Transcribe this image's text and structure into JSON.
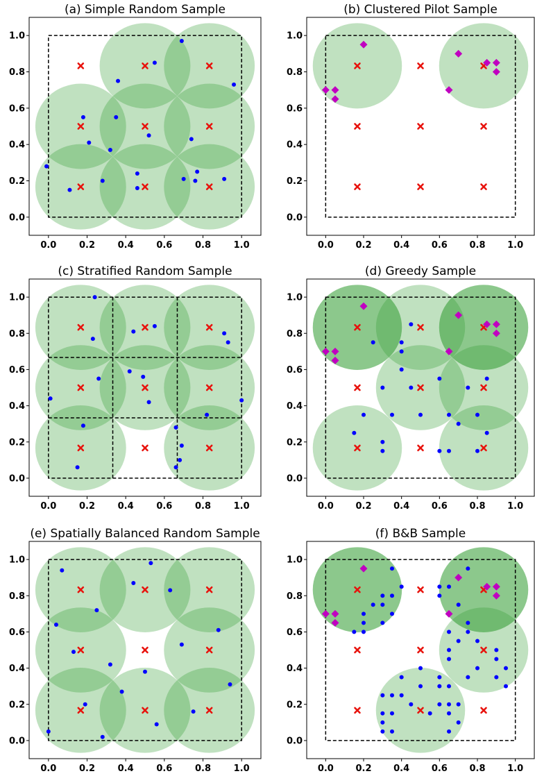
{
  "chart_data": [
    {
      "type": "scatter",
      "title": "(a) Simple Random Sample",
      "xlim": [
        -0.1,
        1.1
      ],
      "ylim": [
        -0.1,
        1.1
      ],
      "xticks": [
        "0.0",
        "0.2",
        "0.4",
        "0.6",
        "0.8",
        "1.0"
      ],
      "yticks": [
        "0.0",
        "0.2",
        "0.4",
        "0.6",
        "0.8",
        "1.0"
      ],
      "box": [
        0,
        1,
        0,
        1
      ],
      "strata": [],
      "centers": [
        [
          0.167,
          0.833
        ],
        [
          0.5,
          0.833
        ],
        [
          0.833,
          0.833
        ],
        [
          0.167,
          0.5
        ],
        [
          0.5,
          0.5
        ],
        [
          0.833,
          0.5
        ],
        [
          0.167,
          0.167
        ],
        [
          0.5,
          0.167
        ],
        [
          0.833,
          0.167
        ]
      ],
      "circle_radius": 0.235,
      "circles_light": [
        [
          0.5,
          0.833
        ],
        [
          0.833,
          0.833
        ],
        [
          0.167,
          0.5
        ],
        [
          0.5,
          0.5
        ],
        [
          0.833,
          0.5
        ],
        [
          0.167,
          0.167
        ],
        [
          0.5,
          0.167
        ],
        [
          0.833,
          0.167
        ]
      ],
      "circles_dark": [],
      "pilot_points": [],
      "sample_points": [
        [
          0.69,
          0.97
        ],
        [
          0.55,
          0.85
        ],
        [
          0.36,
          0.75
        ],
        [
          0.96,
          0.73
        ],
        [
          0.18,
          0.55
        ],
        [
          0.35,
          0.55
        ],
        [
          0.52,
          0.45
        ],
        [
          0.74,
          0.43
        ],
        [
          0.21,
          0.41
        ],
        [
          0.32,
          0.37
        ],
        [
          -0.01,
          0.28
        ],
        [
          0.77,
          0.25
        ],
        [
          0.46,
          0.24
        ],
        [
          0.28,
          0.2
        ],
        [
          0.7,
          0.21
        ],
        [
          0.76,
          0.2
        ],
        [
          0.91,
          0.21
        ],
        [
          0.11,
          0.15
        ],
        [
          0.46,
          0.16
        ]
      ]
    },
    {
      "type": "scatter",
      "title": "(b) Clustered Pilot Sample",
      "xlim": [
        -0.1,
        1.1
      ],
      "ylim": [
        -0.1,
        1.1
      ],
      "xticks": [
        "0.0",
        "0.2",
        "0.4",
        "0.6",
        "0.8",
        "1.0"
      ],
      "yticks": [
        "0.0",
        "0.2",
        "0.4",
        "0.6",
        "0.8",
        "1.0"
      ],
      "box": [
        0,
        1,
        0,
        1
      ],
      "strata": [],
      "centers": [
        [
          0.167,
          0.833
        ],
        [
          0.5,
          0.833
        ],
        [
          0.833,
          0.833
        ],
        [
          0.167,
          0.5
        ],
        [
          0.5,
          0.5
        ],
        [
          0.833,
          0.5
        ],
        [
          0.167,
          0.167
        ],
        [
          0.5,
          0.167
        ],
        [
          0.833,
          0.167
        ]
      ],
      "circle_radius": 0.235,
      "circles_light": [
        [
          0.167,
          0.833
        ],
        [
          0.833,
          0.833
        ]
      ],
      "circles_dark": [],
      "pilot_points": [
        [
          0.2,
          0.95
        ],
        [
          0.0,
          0.7
        ],
        [
          0.05,
          0.7
        ],
        [
          0.05,
          0.65
        ],
        [
          0.7,
          0.9
        ],
        [
          0.85,
          0.85
        ],
        [
          0.9,
          0.85
        ],
        [
          0.9,
          0.8
        ],
        [
          0.65,
          0.7
        ]
      ],
      "sample_points": []
    },
    {
      "type": "scatter",
      "title": "(c) Stratified Random Sample",
      "xlim": [
        -0.1,
        1.1
      ],
      "ylim": [
        -0.1,
        1.1
      ],
      "xticks": [
        "0.0",
        "0.2",
        "0.4",
        "0.6",
        "0.8",
        "1.0"
      ],
      "yticks": [
        "0.0",
        "0.2",
        "0.4",
        "0.6",
        "0.8",
        "1.0"
      ],
      "box": [
        0,
        1,
        0,
        1
      ],
      "strata": [
        0.333,
        0.667
      ],
      "centers": [
        [
          0.167,
          0.833
        ],
        [
          0.5,
          0.833
        ],
        [
          0.833,
          0.833
        ],
        [
          0.167,
          0.5
        ],
        [
          0.5,
          0.5
        ],
        [
          0.833,
          0.5
        ],
        [
          0.167,
          0.167
        ],
        [
          0.5,
          0.167
        ],
        [
          0.833,
          0.167
        ]
      ],
      "circle_radius": 0.235,
      "circles_light": [
        [
          0.167,
          0.833
        ],
        [
          0.5,
          0.833
        ],
        [
          0.833,
          0.833
        ],
        [
          0.167,
          0.5
        ],
        [
          0.5,
          0.5
        ],
        [
          0.833,
          0.5
        ],
        [
          0.167,
          0.167
        ],
        [
          0.833,
          0.167
        ]
      ],
      "circles_dark": [],
      "pilot_points": [],
      "sample_points": [
        [
          0.24,
          1.0
        ],
        [
          0.23,
          0.77
        ],
        [
          0.44,
          0.81
        ],
        [
          0.55,
          0.84
        ],
        [
          0.91,
          0.8
        ],
        [
          0.93,
          0.75
        ],
        [
          0.26,
          0.55
        ],
        [
          0.42,
          0.59
        ],
        [
          0.49,
          0.56
        ],
        [
          0.52,
          0.42
        ],
        [
          0.01,
          0.44
        ],
        [
          1.0,
          0.43
        ],
        [
          0.82,
          0.35
        ],
        [
          0.18,
          0.29
        ],
        [
          0.66,
          0.28
        ],
        [
          0.69,
          0.18
        ],
        [
          0.68,
          0.1
        ],
        [
          0.66,
          0.06
        ],
        [
          0.15,
          0.06
        ]
      ]
    },
    {
      "type": "scatter",
      "title": "(d) Greedy Sample",
      "xlim": [
        -0.1,
        1.1
      ],
      "ylim": [
        -0.1,
        1.1
      ],
      "xticks": [
        "0.0",
        "0.2",
        "0.4",
        "0.6",
        "0.8",
        "1.0"
      ],
      "yticks": [
        "0.0",
        "0.2",
        "0.4",
        "0.6",
        "0.8",
        "1.0"
      ],
      "box": [
        0,
        1,
        0,
        1
      ],
      "strata": [],
      "centers": [
        [
          0.167,
          0.833
        ],
        [
          0.5,
          0.833
        ],
        [
          0.833,
          0.833
        ],
        [
          0.167,
          0.5
        ],
        [
          0.5,
          0.5
        ],
        [
          0.833,
          0.5
        ],
        [
          0.167,
          0.167
        ],
        [
          0.5,
          0.167
        ],
        [
          0.833,
          0.167
        ]
      ],
      "circle_radius": 0.235,
      "circles_light": [
        [
          0.5,
          0.833
        ],
        [
          0.5,
          0.5
        ],
        [
          0.833,
          0.5
        ],
        [
          0.167,
          0.167
        ],
        [
          0.833,
          0.167
        ]
      ],
      "circles_dark": [
        [
          0.167,
          0.833
        ],
        [
          0.833,
          0.833
        ]
      ],
      "pilot_points": [
        [
          0.2,
          0.95
        ],
        [
          0.0,
          0.7
        ],
        [
          0.05,
          0.7
        ],
        [
          0.05,
          0.65
        ],
        [
          0.7,
          0.9
        ],
        [
          0.85,
          0.85
        ],
        [
          0.9,
          0.85
        ],
        [
          0.9,
          0.8
        ],
        [
          0.65,
          0.7
        ]
      ],
      "sample_points": [
        [
          0.45,
          0.85
        ],
        [
          0.25,
          0.75
        ],
        [
          0.4,
          0.75
        ],
        [
          0.4,
          0.7
        ],
        [
          0.4,
          0.6
        ],
        [
          0.3,
          0.5
        ],
        [
          0.45,
          0.5
        ],
        [
          0.6,
          0.55
        ],
        [
          0.75,
          0.5
        ],
        [
          0.85,
          0.55
        ],
        [
          0.2,
          0.35
        ],
        [
          0.35,
          0.35
        ],
        [
          0.5,
          0.35
        ],
        [
          0.65,
          0.35
        ],
        [
          0.7,
          0.3
        ],
        [
          0.8,
          0.35
        ],
        [
          0.85,
          0.25
        ],
        [
          0.15,
          0.25
        ],
        [
          0.3,
          0.2
        ],
        [
          0.3,
          0.15
        ],
        [
          0.6,
          0.15
        ],
        [
          0.65,
          0.15
        ],
        [
          0.8,
          0.15
        ]
      ]
    },
    {
      "type": "scatter",
      "title": "(e) Spatially Balanced Random Sample",
      "xlim": [
        -0.1,
        1.1
      ],
      "ylim": [
        -0.1,
        1.1
      ],
      "xticks": [
        "0.0",
        "0.2",
        "0.4",
        "0.6",
        "0.8",
        "1.0"
      ],
      "yticks": [
        "0.0",
        "0.2",
        "0.4",
        "0.6",
        "0.8",
        "1.0"
      ],
      "box": [
        0,
        1,
        0,
        1
      ],
      "strata": [],
      "centers": [
        [
          0.167,
          0.833
        ],
        [
          0.5,
          0.833
        ],
        [
          0.833,
          0.833
        ],
        [
          0.167,
          0.5
        ],
        [
          0.5,
          0.5
        ],
        [
          0.833,
          0.5
        ],
        [
          0.167,
          0.167
        ],
        [
          0.5,
          0.167
        ],
        [
          0.833,
          0.167
        ]
      ],
      "circle_radius": 0.235,
      "circles_light": [
        [
          0.167,
          0.833
        ],
        [
          0.5,
          0.833
        ],
        [
          0.833,
          0.833
        ],
        [
          0.167,
          0.5
        ],
        [
          0.833,
          0.5
        ],
        [
          0.167,
          0.167
        ],
        [
          0.5,
          0.167
        ],
        [
          0.833,
          0.167
        ]
      ],
      "circles_dark": [],
      "pilot_points": [],
      "sample_points": [
        [
          0.07,
          0.94
        ],
        [
          0.53,
          0.98
        ],
        [
          0.44,
          0.87
        ],
        [
          0.63,
          0.83
        ],
        [
          0.25,
          0.72
        ],
        [
          0.04,
          0.64
        ],
        [
          0.88,
          0.61
        ],
        [
          0.69,
          0.53
        ],
        [
          0.13,
          0.49
        ],
        [
          0.32,
          0.42
        ],
        [
          0.5,
          0.38
        ],
        [
          0.94,
          0.31
        ],
        [
          0.38,
          0.27
        ],
        [
          0.19,
          0.2
        ],
        [
          0.75,
          0.16
        ],
        [
          0.56,
          0.09
        ],
        [
          0.0,
          0.05
        ],
        [
          0.28,
          0.02
        ]
      ]
    },
    {
      "type": "scatter",
      "title": "(f) B&B Sample",
      "xlim": [
        -0.1,
        1.1
      ],
      "ylim": [
        -0.1,
        1.1
      ],
      "xticks": [
        "0.0",
        "0.2",
        "0.4",
        "0.6",
        "0.8",
        "1.0"
      ],
      "yticks": [
        "0.0",
        "0.2",
        "0.4",
        "0.6",
        "0.8",
        "1.0"
      ],
      "box": [
        0,
        1,
        0,
        1
      ],
      "strata": [],
      "centers": [
        [
          0.167,
          0.833
        ],
        [
          0.5,
          0.833
        ],
        [
          0.833,
          0.833
        ],
        [
          0.167,
          0.5
        ],
        [
          0.5,
          0.5
        ],
        [
          0.833,
          0.5
        ],
        [
          0.167,
          0.167
        ],
        [
          0.5,
          0.167
        ],
        [
          0.833,
          0.167
        ]
      ],
      "circle_radius": 0.235,
      "circles_light": [
        [
          0.833,
          0.5
        ],
        [
          0.5,
          0.167
        ]
      ],
      "circles_dark": [
        [
          0.167,
          0.833
        ],
        [
          0.833,
          0.833
        ]
      ],
      "pilot_points": [
        [
          0.2,
          0.95
        ],
        [
          0.0,
          0.7
        ],
        [
          0.05,
          0.7
        ],
        [
          0.05,
          0.65
        ],
        [
          0.7,
          0.9
        ],
        [
          0.85,
          0.85
        ],
        [
          0.9,
          0.85
        ],
        [
          0.9,
          0.8
        ],
        [
          0.65,
          0.7
        ]
      ],
      "sample_points": [
        [
          0.35,
          0.95
        ],
        [
          0.4,
          0.85
        ],
        [
          0.3,
          0.8
        ],
        [
          0.35,
          0.8
        ],
        [
          0.25,
          0.75
        ],
        [
          0.3,
          0.75
        ],
        [
          0.2,
          0.7
        ],
        [
          0.35,
          0.7
        ],
        [
          0.2,
          0.65
        ],
        [
          0.3,
          0.65
        ],
        [
          0.15,
          0.6
        ],
        [
          0.2,
          0.6
        ],
        [
          0.75,
          0.95
        ],
        [
          0.6,
          0.85
        ],
        [
          0.65,
          0.85
        ],
        [
          0.6,
          0.8
        ],
        [
          0.7,
          0.75
        ],
        [
          0.75,
          0.65
        ],
        [
          0.65,
          0.6
        ],
        [
          0.75,
          0.6
        ],
        [
          0.7,
          0.55
        ],
        [
          0.8,
          0.55
        ],
        [
          0.65,
          0.5
        ],
        [
          0.9,
          0.5
        ],
        [
          0.65,
          0.45
        ],
        [
          0.9,
          0.45
        ],
        [
          0.75,
          0.35
        ],
        [
          0.9,
          0.35
        ],
        [
          0.95,
          0.4
        ],
        [
          0.95,
          0.3
        ],
        [
          0.8,
          0.4
        ],
        [
          0.5,
          0.4
        ],
        [
          0.4,
          0.35
        ],
        [
          0.5,
          0.3
        ],
        [
          0.6,
          0.35
        ],
        [
          0.6,
          0.3
        ],
        [
          0.65,
          0.3
        ],
        [
          0.3,
          0.25
        ],
        [
          0.35,
          0.25
        ],
        [
          0.4,
          0.25
        ],
        [
          0.45,
          0.2
        ],
        [
          0.6,
          0.2
        ],
        [
          0.65,
          0.2
        ],
        [
          0.7,
          0.2
        ],
        [
          0.3,
          0.15
        ],
        [
          0.35,
          0.15
        ],
        [
          0.55,
          0.15
        ],
        [
          0.65,
          0.15
        ],
        [
          0.3,
          0.1
        ],
        [
          0.7,
          0.1
        ],
        [
          0.3,
          0.05
        ],
        [
          0.35,
          0.05
        ],
        [
          0.65,
          0.05
        ]
      ]
    }
  ],
  "colors": {
    "circle_fill": "#2e9a2e",
    "circle_light_opacity": 0.3,
    "circle_dark_opacity": 0.55,
    "center_marker": "#e8120c",
    "sample_point": "#0000ff",
    "pilot_point": "#c000c0",
    "frame": "#000000"
  }
}
